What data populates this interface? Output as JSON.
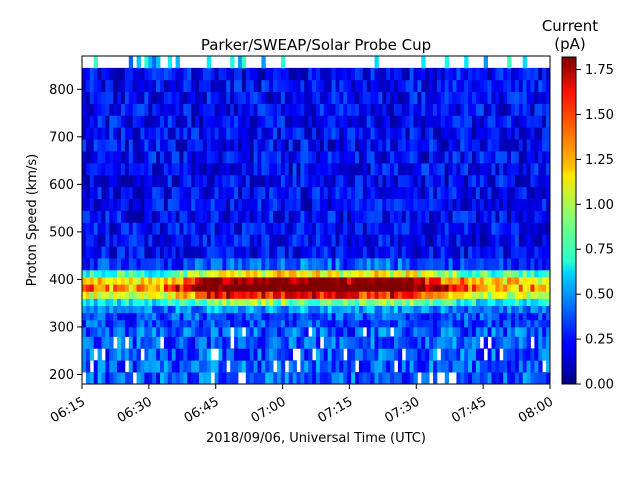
{
  "chart_data": {
    "type": "heatmap",
    "title": "Parker/SWEAP/Solar Probe Cup",
    "xlabel": "2018/09/06, Universal Time (UTC)",
    "ylabel": "Proton Speed (km/s)",
    "x_ticks": [
      "06:15",
      "06:30",
      "06:45",
      "07:00",
      "07:15",
      "07:30",
      "07:45",
      "08:00"
    ],
    "x_range": [
      "06:15",
      "08:00"
    ],
    "y_ticks": [
      200,
      300,
      400,
      500,
      600,
      700,
      800
    ],
    "y_range": [
      180,
      870
    ],
    "colorbar": {
      "label_line1": "Current",
      "label_line2": "(pA)",
      "ticks": [
        "0.00",
        "0.25",
        "0.50",
        "0.75",
        "1.00",
        "1.25",
        "1.50",
        "1.75"
      ],
      "range": [
        0,
        1.82
      ],
      "colormap": "jet"
    },
    "time_bins": 120,
    "speed_bins": [
      {
        "lo": 180,
        "hi": 205
      },
      {
        "lo": 205,
        "hi": 230
      },
      {
        "lo": 230,
        "hi": 255
      },
      {
        "lo": 255,
        "hi": 280
      },
      {
        "lo": 280,
        "hi": 300
      },
      {
        "lo": 300,
        "hi": 315
      },
      {
        "lo": 315,
        "hi": 330
      },
      {
        "lo": 330,
        "hi": 345
      },
      {
        "lo": 345,
        "hi": 360
      },
      {
        "lo": 360,
        "hi": 375
      },
      {
        "lo": 375,
        "hi": 390
      },
      {
        "lo": 390,
        "hi": 405
      },
      {
        "lo": 405,
        "hi": 420
      },
      {
        "lo": 420,
        "hi": 445
      },
      {
        "lo": 445,
        "hi": 470
      },
      {
        "lo": 470,
        "hi": 495
      },
      {
        "lo": 495,
        "hi": 520
      },
      {
        "lo": 520,
        "hi": 545
      },
      {
        "lo": 545,
        "hi": 570
      },
      {
        "lo": 570,
        "hi": 595
      },
      {
        "lo": 595,
        "hi": 620
      },
      {
        "lo": 620,
        "hi": 645
      },
      {
        "lo": 645,
        "hi": 670
      },
      {
        "lo": 670,
        "hi": 695
      },
      {
        "lo": 695,
        "hi": 720
      },
      {
        "lo": 720,
        "hi": 745
      },
      {
        "lo": 745,
        "hi": 770
      },
      {
        "lo": 770,
        "hi": 795
      },
      {
        "lo": 795,
        "hi": 820
      },
      {
        "lo": 820,
        "hi": 845
      },
      {
        "lo": 845,
        "hi": 870
      }
    ],
    "peak_speed_kms": 385,
    "peak_current_pA": 1.8,
    "peak_time_range": [
      "06:45",
      "07:25"
    ]
  }
}
